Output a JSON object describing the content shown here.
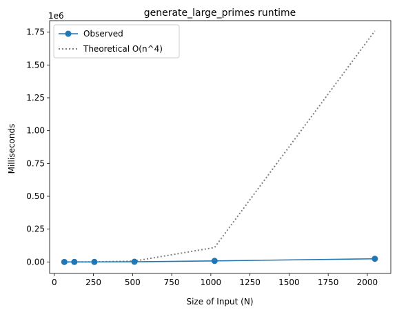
{
  "chart_data": {
    "type": "line",
    "title": "generate_large_primes runtime",
    "xlabel": "Size of Input (N)",
    "ylabel": "Milliseconds",
    "y_scale_label": "1e6",
    "xlim": [
      -30,
      2150
    ],
    "ylim": [
      -87500,
      1837500
    ],
    "x_ticks": [
      0,
      250,
      500,
      750,
      1000,
      1250,
      1500,
      1750,
      2000
    ],
    "y_ticks": [
      0,
      0.25,
      0.5,
      0.75,
      1.0,
      1.25,
      1.5,
      1.75
    ],
    "y_tick_labels": [
      "0.00",
      "0.25",
      "0.50",
      "0.75",
      "1.00",
      "1.25",
      "1.50",
      "1.75"
    ],
    "grid": false,
    "legend_position": "top-left",
    "series": [
      {
        "name": "Observed",
        "style": "solid-markers",
        "color": "#1f77b4",
        "x": [
          64,
          128,
          256,
          512,
          1024,
          2048
        ],
        "y": [
          0,
          50,
          300,
          1500,
          8000,
          24000
        ]
      },
      {
        "name": "Theoretical O(n^4)",
        "style": "dotted",
        "color": "#7f7f7f",
        "x": [
          64,
          128,
          256,
          512,
          1024,
          2048
        ],
        "y": [
          1.7,
          27,
          429,
          6872,
          109951,
          1759219
        ]
      }
    ]
  }
}
